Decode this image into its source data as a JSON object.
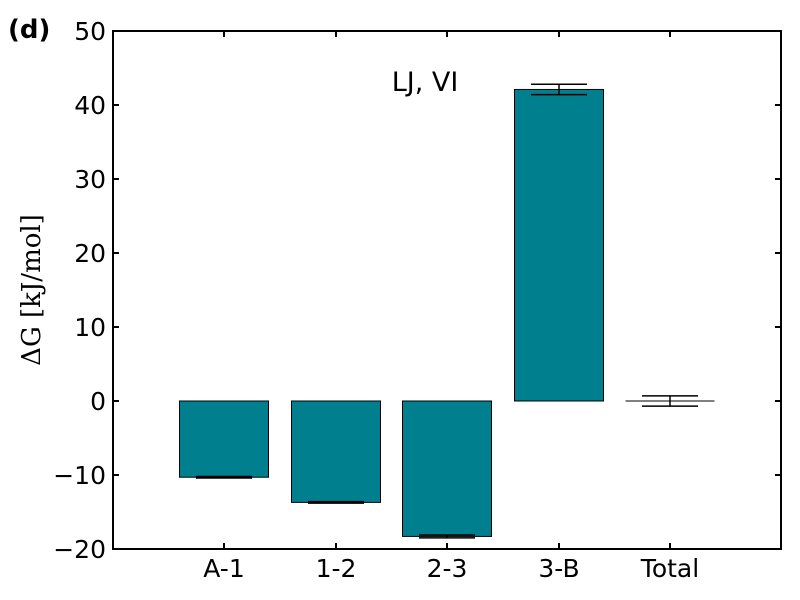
{
  "chart_data": {
    "type": "bar",
    "panel_label": "(d)",
    "annotation": "LJ, VI",
    "ylabel": "ΔG [kJ/mol]",
    "categories": [
      "A-1",
      "1-2",
      "2-3",
      "3-B",
      "Total"
    ],
    "values": [
      -10.3,
      -13.7,
      -18.3,
      42.1,
      0.0
    ],
    "errors": [
      0.1,
      0.1,
      0.2,
      0.7,
      0.7
    ],
    "bar_color": "#00808f",
    "ylim": [
      -20,
      50
    ],
    "yticks": [
      50,
      40,
      30,
      20,
      10,
      0,
      -10,
      -20
    ],
    "ytick_labels": [
      "50",
      "40",
      "30",
      "20",
      "10",
      "0",
      "−10",
      "−20"
    ],
    "grid": false
  }
}
